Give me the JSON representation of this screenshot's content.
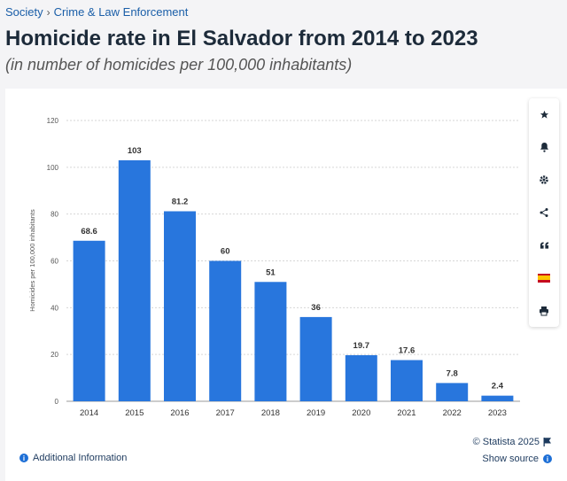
{
  "breadcrumb": {
    "items": [
      "Society",
      "Crime & Law Enforcement"
    ],
    "separator": "›"
  },
  "header": {
    "title": "Homicide rate in El Salvador from 2014 to 2023",
    "subtitle": "(in number of homicides per 100,000 inhabitants)"
  },
  "toolbar": {
    "buttons": [
      "star-icon",
      "bell-icon",
      "gear-icon",
      "share-icon",
      "quote-icon",
      "spain-flag-icon",
      "print-icon"
    ]
  },
  "footer": {
    "additional_info": "Additional Information",
    "copyright": "© Statista 2025",
    "show_source": "Show source"
  },
  "colors": {
    "bar": "#2876dd",
    "accent": "#1d3a5e",
    "link": "#1a5ea8"
  },
  "chart_data": {
    "type": "bar",
    "categories": [
      "2014",
      "2015",
      "2016",
      "2017",
      "2018",
      "2019",
      "2020",
      "2021",
      "2022",
      "2023"
    ],
    "values": [
      68.6,
      103,
      81.2,
      60,
      51,
      36,
      19.7,
      17.6,
      7.8,
      2.4
    ],
    "value_labels": [
      "68.6",
      "103",
      "81.2",
      "60",
      "51",
      "36",
      "19.7",
      "17.6",
      "7.8",
      "2.4"
    ],
    "title": "Homicide rate in El Salvador from 2014 to 2023",
    "xlabel": "",
    "ylabel": "Homicides per 100,000 inhabitants",
    "ylim": [
      0,
      120
    ],
    "yticks": [
      0,
      20,
      40,
      60,
      80,
      100,
      120
    ],
    "grid": true
  }
}
